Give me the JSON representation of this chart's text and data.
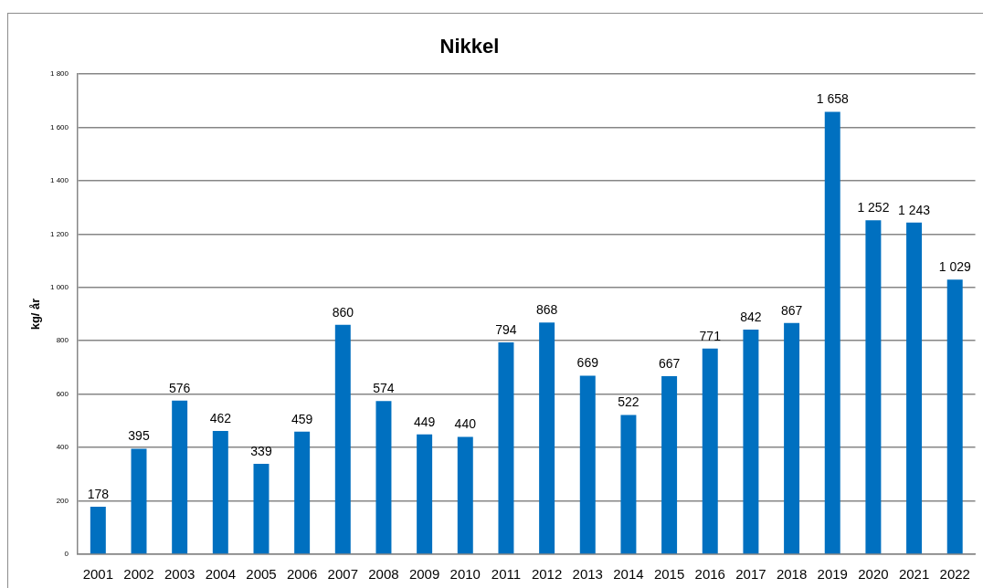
{
  "chart_data": {
    "type": "bar",
    "title": "Nikkel",
    "ylabel": "kg/ år",
    "categories": [
      "2001",
      "2002",
      "2003",
      "2004",
      "2005",
      "2006",
      "2007",
      "2008",
      "2009",
      "2010",
      "2011",
      "2012",
      "2013",
      "2014",
      "2015",
      "2016",
      "2017",
      "2018",
      "2019",
      "2020",
      "2021",
      "2022"
    ],
    "values": [
      178,
      395,
      576,
      462,
      339,
      459,
      860,
      574,
      449,
      440,
      794,
      868,
      669,
      522,
      667,
      771,
      842,
      867,
      1658,
      1252,
      1243,
      1029
    ],
    "value_labels": [
      "178",
      "395",
      "576",
      "462",
      "339",
      "459",
      "860",
      "574",
      "449",
      "440",
      "794",
      "868",
      "669",
      "522",
      "667",
      "771",
      "842",
      "867",
      "1 658",
      "1 252",
      "1 243",
      "1 029"
    ],
    "color": "#0070c0",
    "ylim": [
      0,
      1800
    ],
    "yticks": [
      0,
      200,
      400,
      600,
      800,
      {
        "value": 1000,
        "label": "1 000"
      },
      {
        "value": 1200,
        "label": "1 200"
      },
      {
        "value": 1400,
        "label": "1 400"
      },
      {
        "value": 1600,
        "label": "1 600"
      },
      {
        "value": 1800,
        "label": "1 800"
      }
    ],
    "grid": "y"
  }
}
